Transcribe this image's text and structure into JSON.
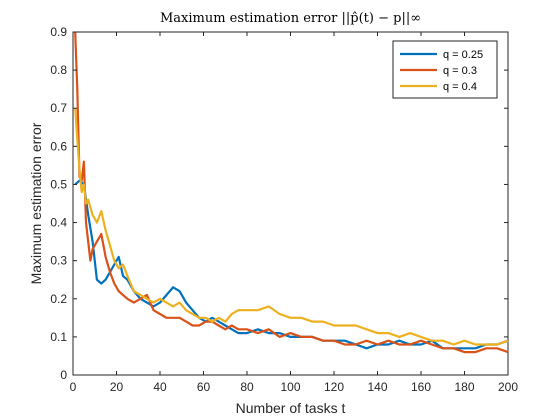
{
  "chart_data": {
    "type": "line",
    "title": "Maximum estimation error ||p̂(t) − p||∞",
    "xlabel": "Number of tasks t",
    "ylabel": "Maximum estimation error",
    "xlim": [
      0,
      200
    ],
    "ylim": [
      0,
      0.9
    ],
    "xticks": [
      "0",
      "20",
      "40",
      "60",
      "80",
      "100",
      "120",
      "140",
      "160",
      "180",
      "200"
    ],
    "yticks": [
      "0",
      "0.1",
      "0.2",
      "0.3",
      "0.4",
      "0.5",
      "0.6",
      "0.7",
      "0.8",
      "0.9"
    ],
    "grid": false,
    "legend_position": "top-right",
    "series": [
      {
        "name": "q = 0.25",
        "color": "#0072BD",
        "x": [
          1,
          3,
          5,
          7,
          9,
          11,
          13,
          15,
          17,
          19,
          21,
          23,
          25,
          28,
          31,
          34,
          37,
          40,
          43,
          46,
          49,
          52,
          55,
          58,
          61,
          64,
          67,
          70,
          73,
          76,
          80,
          85,
          90,
          95,
          100,
          105,
          110,
          115,
          120,
          125,
          130,
          135,
          140,
          145,
          150,
          155,
          160,
          165,
          170,
          175,
          180,
          185,
          190,
          195,
          200
        ],
        "y": [
          0.5,
          0.51,
          0.5,
          0.42,
          0.35,
          0.25,
          0.24,
          0.25,
          0.27,
          0.29,
          0.31,
          0.26,
          0.25,
          0.22,
          0.2,
          0.19,
          0.18,
          0.19,
          0.21,
          0.23,
          0.22,
          0.19,
          0.17,
          0.15,
          0.14,
          0.15,
          0.14,
          0.13,
          0.12,
          0.11,
          0.11,
          0.12,
          0.11,
          0.11,
          0.1,
          0.1,
          0.1,
          0.09,
          0.09,
          0.09,
          0.08,
          0.07,
          0.08,
          0.08,
          0.09,
          0.08,
          0.08,
          0.09,
          0.07,
          0.07,
          0.07,
          0.07,
          0.08,
          0.08,
          0.09
        ]
      },
      {
        "name": "q = 0.3",
        "color": "#D95319",
        "x": [
          1,
          2,
          3,
          4,
          5,
          6,
          7,
          8,
          9,
          11,
          13,
          15,
          17,
          19,
          21,
          23,
          25,
          28,
          31,
          34,
          37,
          40,
          43,
          46,
          49,
          52,
          55,
          58,
          61,
          64,
          67,
          70,
          73,
          76,
          80,
          85,
          90,
          95,
          100,
          105,
          110,
          115,
          120,
          125,
          130,
          135,
          140,
          145,
          150,
          155,
          160,
          165,
          170,
          175,
          180,
          185,
          190,
          195,
          200
        ],
        "y": [
          0.9,
          0.75,
          0.52,
          0.51,
          0.56,
          0.4,
          0.35,
          0.3,
          0.33,
          0.35,
          0.37,
          0.31,
          0.27,
          0.24,
          0.22,
          0.21,
          0.2,
          0.19,
          0.2,
          0.21,
          0.17,
          0.16,
          0.15,
          0.15,
          0.15,
          0.14,
          0.13,
          0.13,
          0.14,
          0.14,
          0.13,
          0.12,
          0.13,
          0.12,
          0.12,
          0.11,
          0.12,
          0.1,
          0.11,
          0.1,
          0.1,
          0.09,
          0.09,
          0.08,
          0.08,
          0.09,
          0.08,
          0.09,
          0.08,
          0.08,
          0.09,
          0.08,
          0.07,
          0.07,
          0.06,
          0.06,
          0.07,
          0.07,
          0.06
        ]
      },
      {
        "name": "q = 0.4",
        "color": "#EDB120",
        "x": [
          1,
          2,
          3,
          4,
          5,
          6,
          7,
          9,
          11,
          13,
          15,
          17,
          19,
          21,
          23,
          25,
          28,
          31,
          34,
          37,
          40,
          43,
          46,
          49,
          52,
          55,
          58,
          61,
          64,
          67,
          70,
          73,
          76,
          80,
          85,
          90,
          95,
          100,
          105,
          110,
          115,
          120,
          125,
          130,
          135,
          140,
          145,
          150,
          155,
          160,
          165,
          170,
          175,
          180,
          185,
          190,
          195,
          200
        ],
        "y": [
          0.7,
          0.62,
          0.54,
          0.48,
          0.5,
          0.45,
          0.46,
          0.42,
          0.4,
          0.43,
          0.38,
          0.34,
          0.3,
          0.28,
          0.29,
          0.26,
          0.22,
          0.21,
          0.2,
          0.19,
          0.2,
          0.19,
          0.18,
          0.19,
          0.17,
          0.16,
          0.15,
          0.15,
          0.14,
          0.15,
          0.14,
          0.16,
          0.17,
          0.17,
          0.17,
          0.18,
          0.16,
          0.15,
          0.15,
          0.14,
          0.14,
          0.13,
          0.13,
          0.13,
          0.12,
          0.11,
          0.11,
          0.1,
          0.11,
          0.1,
          0.09,
          0.09,
          0.08,
          0.09,
          0.08,
          0.08,
          0.08,
          0.09
        ]
      }
    ]
  }
}
